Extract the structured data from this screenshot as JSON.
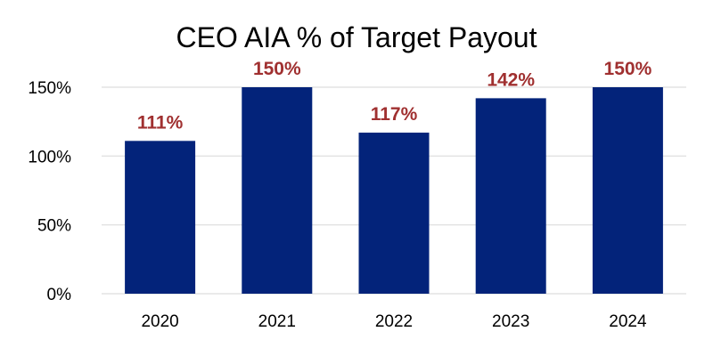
{
  "chart_data": {
    "type": "bar",
    "title": "CEO AIA % of Target Payout",
    "xlabel": "",
    "ylabel": "",
    "categories": [
      "2020",
      "2021",
      "2022",
      "2023",
      "2024"
    ],
    "values": [
      111,
      150,
      117,
      142,
      150
    ],
    "value_labels": [
      "111%",
      "150%",
      "117%",
      "142%",
      "150%"
    ],
    "ylim": [
      0,
      150
    ],
    "yticks": [
      0,
      50,
      100,
      150
    ],
    "ytick_labels": [
      "0%",
      "50%",
      "100%",
      "150%"
    ],
    "grid": true,
    "legend": "none"
  },
  "colors": {
    "bar": "#03237A",
    "data_label": "#A03030",
    "grid": "#E3E3E3",
    "text": "#000000"
  }
}
